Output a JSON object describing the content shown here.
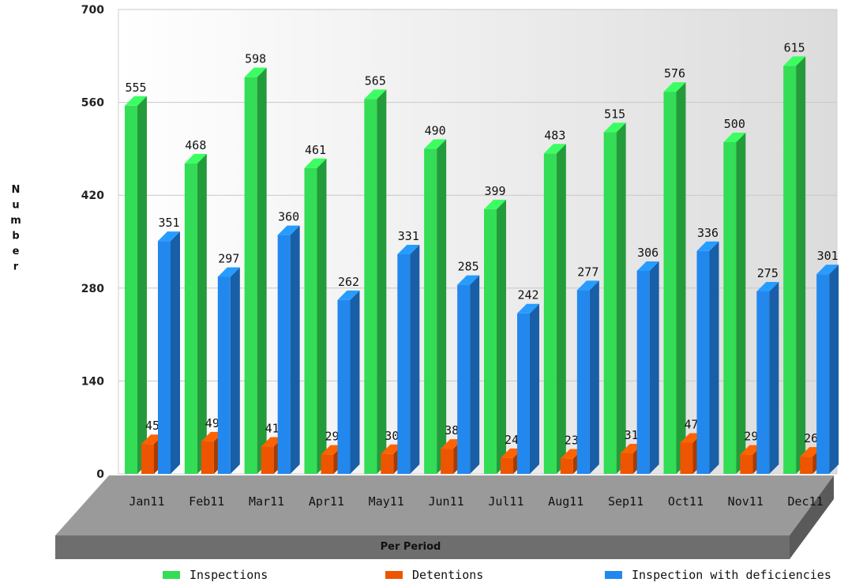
{
  "chart_data": {
    "type": "bar",
    "title": "",
    "xlabel": "Per Period",
    "ylabel": "Number",
    "ylim": [
      0,
      700
    ],
    "yticks": [
      0,
      140,
      280,
      420,
      560,
      700
    ],
    "grid": true,
    "legend_position": "bottom",
    "categories": [
      "Jan11",
      "Feb11",
      "Mar11",
      "Apr11",
      "May11",
      "Jun11",
      "Jul11",
      "Aug11",
      "Sep11",
      "Oct11",
      "Nov11",
      "Dec11"
    ],
    "series": [
      {
        "name": "Inspections",
        "color": "#33dd55",
        "values": [
          555,
          468,
          598,
          461,
          565,
          490,
          399,
          483,
          515,
          576,
          500,
          615
        ]
      },
      {
        "name": "Detentions",
        "color": "#ee5500",
        "values": [
          45,
          49,
          41,
          29,
          30,
          38,
          24,
          23,
          31,
          47,
          29,
          26
        ]
      },
      {
        "name": "Inspection with deficiencies",
        "color": "#2288ee",
        "values": [
          351,
          297,
          360,
          262,
          331,
          285,
          242,
          277,
          306,
          336,
          275,
          301
        ]
      }
    ]
  }
}
